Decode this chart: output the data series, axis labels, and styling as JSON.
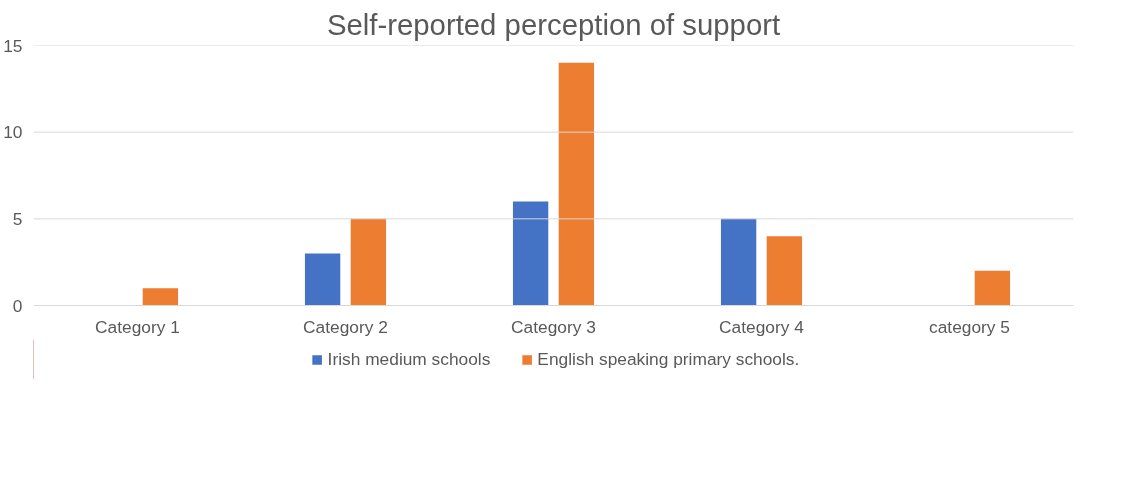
{
  "chart_data": {
    "type": "bar",
    "title": "Self-reported perception of support",
    "categories": [
      "Category 1",
      "Category 2",
      "Category 3",
      "Category 4",
      "category 5"
    ],
    "series": [
      {
        "name": "Irish medium schools",
        "color": "#4472c4",
        "values": [
          0,
          3,
          6,
          5,
          0
        ]
      },
      {
        "name": "English speaking primary schools.",
        "color": "#ed7d31",
        "values": [
          1,
          5,
          14,
          4,
          2
        ]
      }
    ],
    "ylim": [
      0,
      15
    ],
    "yticks": [
      0,
      5,
      10,
      15
    ],
    "grid": "y",
    "legend": "bottom"
  }
}
